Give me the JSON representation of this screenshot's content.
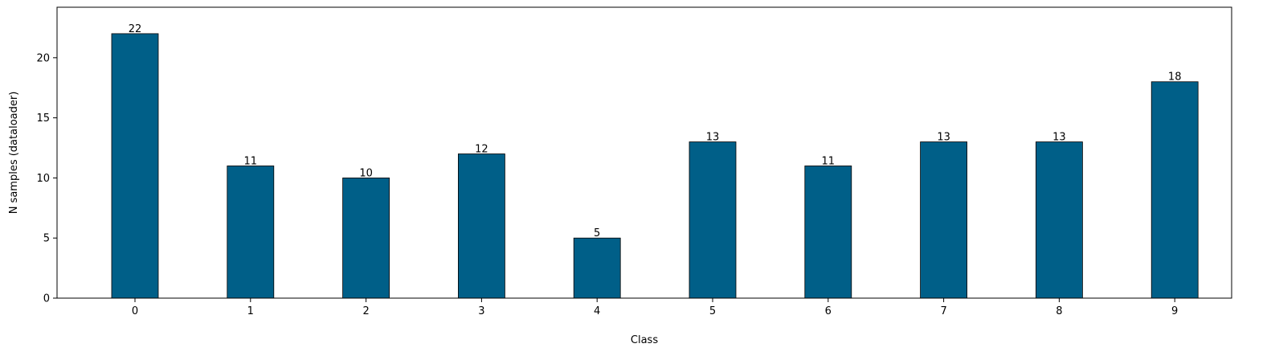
{
  "chart_data": {
    "type": "bar",
    "title": "",
    "xlabel": "Class",
    "ylabel": "N samples (dataloader)",
    "categories": [
      "0",
      "1",
      "2",
      "3",
      "4",
      "5",
      "6",
      "7",
      "8",
      "9"
    ],
    "values": [
      22,
      11,
      10,
      12,
      5,
      13,
      11,
      13,
      13,
      18
    ],
    "data_labels": [
      "22",
      "11",
      "10",
      "12",
      "5",
      "13",
      "11",
      "13",
      "13",
      "18"
    ],
    "ylim": [
      0,
      24.2
    ],
    "yticks": [
      0,
      5,
      10,
      15,
      20
    ],
    "ytick_labels": [
      "0",
      "5",
      "10",
      "15",
      "20"
    ],
    "grid": false,
    "legend": "none",
    "bar_color": "#005f88",
    "bar_edge_color": "#000000"
  }
}
